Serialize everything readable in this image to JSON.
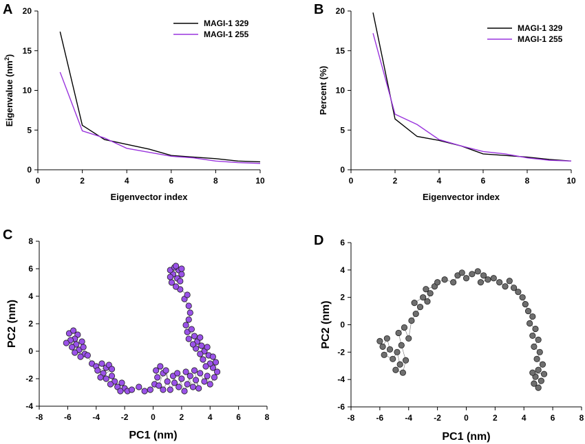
{
  "chart_data": [
    {
      "panel": "A",
      "type": "line",
      "xlabel": "Eigenvector index",
      "ylabel": "Eigenvalue (nm2)",
      "ylabel_parts": [
        "Eigenvalue (nm",
        "2",
        ")"
      ],
      "xlim": [
        0,
        10
      ],
      "ylim": [
        0,
        20
      ],
      "xticks": [
        0,
        2,
        4,
        6,
        8,
        10
      ],
      "yticks": [
        0,
        5,
        10,
        15,
        20
      ],
      "legend": "top-right",
      "x": [
        1,
        2,
        3,
        4,
        5,
        6,
        7,
        8,
        9,
        10
      ],
      "series": [
        {
          "name": "MAGI-1 329",
          "color": "#000000",
          "values": [
            17.4,
            5.6,
            3.8,
            3.2,
            2.6,
            1.8,
            1.6,
            1.4,
            1.1,
            1.0
          ]
        },
        {
          "name": "MAGI-1 255",
          "color": "#9933dd",
          "values": [
            12.3,
            4.9,
            4.0,
            2.7,
            2.2,
            1.7,
            1.5,
            1.1,
            0.9,
            0.8
          ]
        }
      ]
    },
    {
      "panel": "B",
      "type": "line",
      "xlabel": "Eigenvector index",
      "ylabel": "Percent (%)",
      "xlim": [
        0,
        10
      ],
      "ylim": [
        0,
        20
      ],
      "xticks": [
        0,
        2,
        4,
        6,
        8,
        10
      ],
      "yticks": [
        0,
        5,
        10,
        15,
        20
      ],
      "legend": "top-right",
      "x": [
        1,
        2,
        3,
        4,
        5,
        6,
        7,
        8,
        9,
        10
      ],
      "series": [
        {
          "name": "MAGI-1 329",
          "color": "#000000",
          "values": [
            19.8,
            6.4,
            4.2,
            3.7,
            3.0,
            2.0,
            1.8,
            1.6,
            1.3,
            1.1
          ]
        },
        {
          "name": "MAGI-1 255",
          "color": "#9933dd",
          "values": [
            17.2,
            7.0,
            5.7,
            3.8,
            3.0,
            2.3,
            2.0,
            1.5,
            1.2,
            1.1
          ]
        }
      ]
    },
    {
      "panel": "C",
      "type": "scatter",
      "xlabel": "PC1 (nm)",
      "ylabel": "PC2 (nm)",
      "xlim": [
        -8,
        8
      ],
      "ylim": [
        -4,
        8
      ],
      "xticks": [
        -8,
        -6,
        -4,
        -2,
        0,
        2,
        4,
        6,
        8
      ],
      "yticks": [
        -4,
        -2,
        0,
        2,
        4,
        6,
        8
      ],
      "color": "#9a52e8",
      "points": [
        [
          -5.9,
          1.3
        ],
        [
          -5.6,
          1.5
        ],
        [
          -5.3,
          1.2
        ],
        [
          -5.5,
          0.9
        ],
        [
          -5.8,
          0.8
        ],
        [
          -6.1,
          0.6
        ],
        [
          -5.4,
          0.5
        ],
        [
          -5.0,
          0.7
        ],
        [
          -5.7,
          0.3
        ],
        [
          -5.2,
          0.1
        ],
        [
          -4.9,
          0.3
        ],
        [
          -5.5,
          -0.1
        ],
        [
          -4.8,
          -0.2
        ],
        [
          -5.1,
          -0.4
        ],
        [
          -4.6,
          -0.3
        ],
        [
          -4.3,
          -0.9
        ],
        [
          -4.0,
          -1.1
        ],
        [
          -3.6,
          -0.9
        ],
        [
          -3.3,
          -1.2
        ],
        [
          -3.9,
          -1.4
        ],
        [
          -3.5,
          -1.6
        ],
        [
          -3.1,
          -1.0
        ],
        [
          -2.9,
          -1.3
        ],
        [
          -3.7,
          -1.9
        ],
        [
          -3.3,
          -2.0
        ],
        [
          -2.9,
          -1.8
        ],
        [
          -2.7,
          -2.2
        ],
        [
          -3.0,
          -2.4
        ],
        [
          -2.5,
          -2.6
        ],
        [
          -2.2,
          -2.3
        ],
        [
          -2.0,
          -2.7
        ],
        [
          -1.8,
          -2.9
        ],
        [
          -2.3,
          -2.9
        ],
        [
          -1.5,
          -2.8
        ],
        [
          -1.0,
          -2.6
        ],
        [
          -0.6,
          -2.9
        ],
        [
          -0.2,
          -2.8
        ],
        [
          0.1,
          -2.4
        ],
        [
          0.3,
          -1.9
        ],
        [
          0.2,
          -1.4
        ],
        [
          0.5,
          -1.1
        ],
        [
          0.7,
          -1.6
        ],
        [
          0.4,
          -2.5
        ],
        [
          0.7,
          -2.8
        ],
        [
          1.0,
          -2.2
        ],
        [
          0.9,
          -1.4
        ],
        [
          1.2,
          -2.8
        ],
        [
          1.5,
          -2.3
        ],
        [
          1.4,
          -1.8
        ],
        [
          1.8,
          -2.6
        ],
        [
          2.0,
          -2.0
        ],
        [
          1.7,
          -1.6
        ],
        [
          2.2,
          -2.9
        ],
        [
          2.4,
          -2.4
        ],
        [
          2.6,
          -1.8
        ],
        [
          2.3,
          -1.5
        ],
        [
          2.8,
          -2.6
        ],
        [
          3.0,
          -2.1
        ],
        [
          3.2,
          -2.7
        ],
        [
          2.9,
          -1.4
        ],
        [
          3.3,
          -1.6
        ],
        [
          3.6,
          -2.2
        ],
        [
          3.8,
          -1.8
        ],
        [
          4.0,
          -2.4
        ],
        [
          4.3,
          -1.9
        ],
        [
          4.5,
          -1.5
        ],
        [
          4.2,
          -1.2
        ],
        [
          4.4,
          -0.8
        ],
        [
          4.0,
          -0.9
        ],
        [
          3.7,
          -1.1
        ],
        [
          3.5,
          -0.6
        ],
        [
          3.9,
          -0.3
        ],
        [
          4.2,
          -0.4
        ],
        [
          3.6,
          0.0
        ],
        [
          3.3,
          -0.2
        ],
        [
          3.0,
          0.2
        ],
        [
          3.4,
          0.4
        ],
        [
          3.8,
          0.3
        ],
        [
          3.1,
          0.7
        ],
        [
          2.8,
          0.5
        ],
        [
          2.5,
          0.9
        ],
        [
          2.9,
          1.1
        ],
        [
          3.3,
          1.0
        ],
        [
          2.4,
          1.4
        ],
        [
          2.7,
          1.6
        ],
        [
          2.3,
          1.9
        ],
        [
          2.5,
          2.3
        ],
        [
          2.6,
          2.8
        ],
        [
          2.5,
          3.3
        ],
        [
          2.2,
          3.8
        ],
        [
          2.4,
          4.1
        ],
        [
          1.9,
          4.5
        ],
        [
          1.6,
          4.7
        ],
        [
          1.3,
          5.0
        ],
        [
          1.7,
          5.3
        ],
        [
          1.4,
          5.6
        ],
        [
          1.8,
          5.9
        ],
        [
          1.2,
          5.9
        ],
        [
          1.5,
          6.1
        ],
        [
          2.0,
          5.6
        ],
        [
          1.9,
          5.1
        ],
        [
          1.2,
          5.4
        ],
        [
          1.6,
          6.2
        ],
        [
          2.0,
          6.0
        ]
      ]
    },
    {
      "panel": "D",
      "type": "scatter",
      "xlabel": "PC1 (nm)",
      "ylabel": "PC2 (nm)",
      "xlim": [
        -8,
        8
      ],
      "ylim": [
        -6,
        6
      ],
      "xticks": [
        -8,
        -6,
        -4,
        -2,
        0,
        2,
        4,
        6,
        8
      ],
      "yticks": [
        -6,
        -4,
        -2,
        0,
        2,
        4,
        6
      ],
      "color": "#6e6e6e",
      "points": [
        [
          -6.0,
          -1.2
        ],
        [
          -5.8,
          -1.6
        ],
        [
          -5.5,
          -1.0
        ],
        [
          -5.3,
          -1.8
        ],
        [
          -5.7,
          -2.2
        ],
        [
          -5.1,
          -2.5
        ],
        [
          -4.8,
          -2.0
        ],
        [
          -4.6,
          -2.9
        ],
        [
          -4.9,
          -3.3
        ],
        [
          -4.4,
          -3.5
        ],
        [
          -4.2,
          -2.6
        ],
        [
          -4.5,
          -1.5
        ],
        [
          -4.7,
          -0.6
        ],
        [
          -4.3,
          -0.2
        ],
        [
          -4.0,
          -1.0
        ],
        [
          -3.8,
          0.3
        ],
        [
          -3.5,
          0.8
        ],
        [
          -3.2,
          1.3
        ],
        [
          -3.6,
          1.6
        ],
        [
          -3.0,
          2.0
        ],
        [
          -2.7,
          1.7
        ],
        [
          -2.5,
          2.3
        ],
        [
          -2.8,
          2.6
        ],
        [
          -2.2,
          2.8
        ],
        [
          -2.0,
          3.1
        ],
        [
          -1.5,
          3.3
        ],
        [
          -0.9,
          3.1
        ],
        [
          -0.6,
          3.6
        ],
        [
          -0.3,
          3.8
        ],
        [
          0.0,
          3.4
        ],
        [
          0.4,
          3.7
        ],
        [
          0.8,
          3.9
        ],
        [
          1.2,
          3.6
        ],
        [
          1.5,
          3.3
        ],
        [
          1.0,
          3.1
        ],
        [
          1.9,
          3.4
        ],
        [
          2.3,
          3.1
        ],
        [
          2.7,
          2.8
        ],
        [
          3.0,
          3.2
        ],
        [
          3.3,
          2.7
        ],
        [
          3.6,
          2.4
        ],
        [
          3.9,
          2.0
        ],
        [
          4.1,
          1.5
        ],
        [
          4.3,
          1.0
        ],
        [
          4.6,
          0.6
        ],
        [
          4.4,
          0.1
        ],
        [
          4.8,
          -0.3
        ],
        [
          4.6,
          -0.8
        ],
        [
          5.0,
          -1.1
        ],
        [
          4.7,
          -1.6
        ],
        [
          5.1,
          -2.0
        ],
        [
          4.9,
          -2.5
        ],
        [
          5.3,
          -2.9
        ],
        [
          5.0,
          -3.3
        ],
        [
          4.8,
          -3.8
        ],
        [
          5.2,
          -4.1
        ],
        [
          5.0,
          -4.6
        ],
        [
          4.7,
          -4.3
        ],
        [
          4.6,
          -3.5
        ],
        [
          5.4,
          -3.6
        ]
      ]
    }
  ]
}
